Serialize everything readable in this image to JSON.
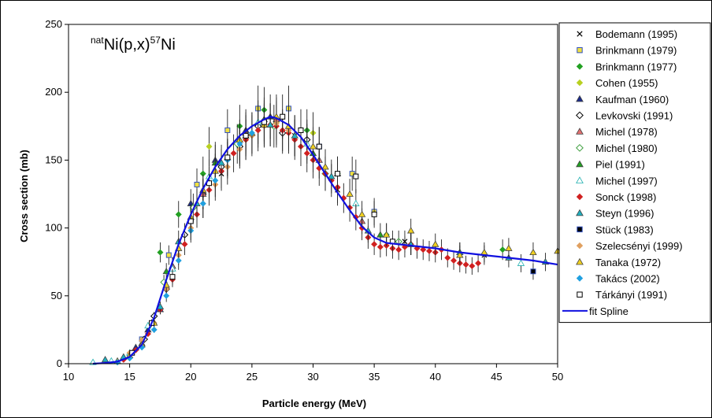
{
  "chart_data": {
    "type": "scatter",
    "title": "",
    "annotation": {
      "prefix_sup": "nat",
      "mid": "Ni(p,x)",
      "mid_sup": "57",
      "suffix": "Ni"
    },
    "xlabel": "Particle energy (MeV)",
    "ylabel": "Cross section (mb)",
    "xlim": [
      10,
      50
    ],
    "ylim": [
      0,
      250
    ],
    "x_ticks": [
      "10",
      "15",
      "20",
      "25",
      "30",
      "35",
      "40",
      "45",
      "50"
    ],
    "y_ticks": [
      "0",
      "50",
      "100",
      "150",
      "200",
      "250"
    ],
    "grid": false,
    "legend_position": "right",
    "series": [
      {
        "name": "Bodemann (1995)",
        "marker": "x",
        "color": "#000000",
        "points": [
          [
            22.5,
            140
          ],
          [
            28.5,
            168
          ],
          [
            32.0,
            128
          ],
          [
            37.5,
            90
          ],
          [
            44.0,
            80
          ]
        ]
      },
      {
        "name": "Brinkmann (1979)",
        "marker": "square",
        "color": "#f0e040",
        "points": [
          [
            16.0,
            18
          ],
          [
            18.2,
            80
          ],
          [
            20.5,
            132
          ],
          [
            23.0,
            172
          ],
          [
            25.5,
            188
          ],
          [
            28.0,
            188
          ],
          [
            30.5,
            160
          ],
          [
            33.2,
            140
          ],
          [
            35.0,
            112
          ]
        ]
      },
      {
        "name": "Brinkmann (1977)",
        "marker": "diamond",
        "color": "#22a022",
        "points": [
          [
            17.5,
            82
          ],
          [
            19.0,
            110
          ],
          [
            21.0,
            140
          ],
          [
            24.0,
            175
          ],
          [
            26.0,
            187
          ],
          [
            29.5,
            172
          ],
          [
            32.0,
            140
          ],
          [
            36.0,
            95
          ],
          [
            45.5,
            84
          ]
        ]
      },
      {
        "name": "Cohen (1955)",
        "marker": "diamond",
        "color": "#b8d020",
        "points": [
          [
            21.5,
            160
          ],
          [
            24.5,
            165
          ],
          [
            27.0,
            178
          ],
          [
            30.0,
            170
          ]
        ]
      },
      {
        "name": "Kaufman (1960)",
        "marker": "triangle",
        "color": "#1a2a8a",
        "points": [
          [
            15.5,
            12
          ],
          [
            16.5,
            25
          ],
          [
            17.5,
            40
          ],
          [
            18.5,
            72
          ],
          [
            20.0,
            118
          ],
          [
            22.0,
            150
          ],
          [
            24.5,
            172
          ],
          [
            26.5,
            182
          ]
        ]
      },
      {
        "name": "Levkovski (1991)",
        "marker": "diamond-open",
        "color": "#000000",
        "points": [
          [
            16.2,
            18
          ],
          [
            17.0,
            35
          ],
          [
            18.0,
            55
          ],
          [
            19.5,
            95
          ],
          [
            21.0,
            125
          ],
          [
            22.5,
            145
          ],
          [
            24.0,
            160
          ],
          [
            25.5,
            175
          ],
          [
            27.5,
            170
          ],
          [
            29.5,
            165
          ]
        ]
      },
      {
        "name": "Michel (1978)",
        "marker": "triangle",
        "color": "#e07070",
        "points": [
          [
            18.5,
            72
          ],
          [
            21.0,
            125
          ],
          [
            24.5,
            170
          ],
          [
            27.0,
            180
          ],
          [
            30.5,
            150
          ],
          [
            34.0,
            105
          ]
        ]
      },
      {
        "name": "Michel (1980)",
        "marker": "diamond-open",
        "color": "#40a040",
        "points": [
          [
            17.8,
            60
          ],
          [
            20.2,
            115
          ],
          [
            23.8,
            162
          ],
          [
            26.8,
            175
          ],
          [
            31.0,
            140
          ],
          [
            37.0,
            90
          ]
        ]
      },
      {
        "name": "Piel (1991)",
        "marker": "triangle",
        "color": "#22a022",
        "points": [
          [
            18.0,
            68
          ],
          [
            22.0,
            148
          ],
          [
            26.0,
            180
          ],
          [
            30.0,
            155
          ],
          [
            35.5,
            95
          ]
        ]
      },
      {
        "name": "Michel (1997)",
        "marker": "triangle-open",
        "color": "#20b0b0",
        "points": [
          [
            12.0,
            1
          ],
          [
            13.5,
            2
          ],
          [
            15.0,
            8
          ],
          [
            16.5,
            28
          ],
          [
            18.5,
            70
          ],
          [
            21.5,
            138
          ],
          [
            25.5,
            178
          ],
          [
            29.5,
            162
          ],
          [
            33.5,
            118
          ],
          [
            38.0,
            88
          ],
          [
            42.0,
            82
          ],
          [
            47.0,
            74
          ]
        ]
      },
      {
        "name": "Sonck (1998)",
        "marker": "diamond",
        "color": "#d02020",
        "points": [
          [
            14.5,
            3
          ],
          [
            15.5,
            10
          ],
          [
            16.5,
            22
          ],
          [
            17.5,
            40
          ],
          [
            18.5,
            62
          ],
          [
            19.5,
            88
          ],
          [
            20.5,
            110
          ],
          [
            21.5,
            128
          ],
          [
            22.5,
            142
          ],
          [
            23.5,
            155
          ],
          [
            24.5,
            165
          ],
          [
            25.5,
            172
          ],
          [
            26.5,
            176
          ],
          [
            27.0,
            175
          ],
          [
            27.5,
            172
          ],
          [
            28.0,
            170
          ],
          [
            28.5,
            165
          ],
          [
            29.0,
            160
          ],
          [
            29.5,
            155
          ],
          [
            30.0,
            150
          ],
          [
            30.5,
            144
          ],
          [
            31.0,
            140
          ],
          [
            31.5,
            135
          ],
          [
            32.0,
            130
          ],
          [
            32.5,
            122
          ],
          [
            33.0,
            115
          ],
          [
            33.5,
            108
          ],
          [
            34.0,
            100
          ],
          [
            34.5,
            93
          ],
          [
            35.0,
            88
          ],
          [
            35.5,
            86
          ],
          [
            36.0,
            87
          ],
          [
            36.5,
            85
          ],
          [
            37.0,
            84
          ],
          [
            37.5,
            86
          ],
          [
            38.0,
            88
          ],
          [
            38.5,
            85
          ],
          [
            39.0,
            84
          ],
          [
            39.5,
            83
          ],
          [
            40.0,
            82
          ],
          [
            40.5,
            84
          ],
          [
            41.0,
            78
          ],
          [
            41.5,
            76
          ],
          [
            42.0,
            74
          ],
          [
            42.5,
            73
          ],
          [
            43.0,
            72
          ],
          [
            43.5,
            74
          ]
        ]
      },
      {
        "name": "Steyn (1996)",
        "marker": "triangle",
        "color": "#20b0c0",
        "points": [
          [
            13.0,
            3
          ],
          [
            14.5,
            5
          ],
          [
            16.0,
            15
          ],
          [
            17.5,
            42
          ],
          [
            19.0,
            90
          ],
          [
            20.5,
            118
          ],
          [
            22.5,
            148
          ],
          [
            24.5,
            168
          ],
          [
            26.5,
            176
          ],
          [
            28.5,
            168
          ],
          [
            31.5,
            138
          ],
          [
            34.5,
            98
          ],
          [
            38.0,
            88
          ],
          [
            42.0,
            82
          ],
          [
            46.0,
            78
          ],
          [
            49.0,
            75
          ]
        ]
      },
      {
        "name": "Stück (1983)",
        "marker": "square",
        "color": "#000000",
        "points": [
          [
            48.0,
            68
          ]
        ]
      },
      {
        "name": "Szelecsényi (1999)",
        "marker": "diamond",
        "color": "#e0a060",
        "points": [
          [
            15.0,
            8
          ],
          [
            16.0,
            17
          ],
          [
            17.0,
            30
          ],
          [
            18.0,
            55
          ],
          [
            19.0,
            80
          ],
          [
            20.0,
            100
          ],
          [
            21.0,
            118
          ],
          [
            22.0,
            132
          ],
          [
            23.0,
            145
          ],
          [
            24.0,
            158
          ],
          [
            25.0,
            168
          ],
          [
            26.0,
            175
          ],
          [
            27.0,
            177
          ],
          [
            28.0,
            172
          ]
        ]
      },
      {
        "name": "Tanaka (1972)",
        "marker": "triangle",
        "color": "#f0d020",
        "points": [
          [
            14.0,
            2
          ],
          [
            15.0,
            6
          ],
          [
            16.0,
            14
          ],
          [
            17.0,
            30
          ],
          [
            18.0,
            58
          ],
          [
            19.0,
            85
          ],
          [
            20.0,
            108
          ],
          [
            21.0,
            128
          ],
          [
            22.0,
            142
          ],
          [
            23.0,
            152
          ],
          [
            24.0,
            165
          ],
          [
            25.0,
            170
          ],
          [
            26.0,
            176
          ],
          [
            27.0,
            182
          ],
          [
            28.0,
            175
          ],
          [
            30.0,
            160
          ],
          [
            31.0,
            145
          ],
          [
            32.0,
            140
          ],
          [
            33.0,
            125
          ],
          [
            34.0,
            110
          ],
          [
            36.0,
            95
          ],
          [
            38.0,
            98
          ],
          [
            40.0,
            88
          ],
          [
            42.0,
            80
          ],
          [
            44.0,
            82
          ],
          [
            46.0,
            85
          ],
          [
            48.0,
            82
          ],
          [
            50.0,
            83
          ]
        ]
      },
      {
        "name": "Takács (2002)",
        "marker": "diamond",
        "color": "#20a0e0",
        "points": [
          [
            14.0,
            1
          ],
          [
            15.0,
            4
          ],
          [
            16.0,
            12
          ],
          [
            17.0,
            25
          ],
          [
            18.0,
            50
          ],
          [
            19.0,
            76
          ],
          [
            20.0,
            98
          ],
          [
            21.0,
            118
          ],
          [
            22.0,
            135
          ],
          [
            23.0,
            150
          ],
          [
            24.0,
            162
          ],
          [
            25.0,
            170
          ]
        ]
      },
      {
        "name": "Tárkányi (1991)",
        "marker": "square-open",
        "color": "#000000",
        "points": [
          [
            15.2,
            8
          ],
          [
            16.8,
            30
          ],
          [
            18.5,
            64
          ],
          [
            20.0,
            105
          ],
          [
            21.5,
            133
          ],
          [
            23.0,
            152
          ],
          [
            24.5,
            168
          ],
          [
            26.0,
            178
          ],
          [
            27.5,
            182
          ],
          [
            29.0,
            172
          ],
          [
            30.5,
            160
          ],
          [
            32.0,
            140
          ],
          [
            33.5,
            138
          ],
          [
            35.0,
            110
          ],
          [
            36.5,
            90
          ]
        ]
      }
    ],
    "fit": {
      "name": "fit Spline",
      "color": "#1010e0",
      "points": [
        [
          12,
          0
        ],
        [
          13,
          0.5
        ],
        [
          14,
          1.5
        ],
        [
          15,
          5
        ],
        [
          16,
          14
        ],
        [
          17,
          34
        ],
        [
          18,
          62
        ],
        [
          19,
          88
        ],
        [
          20,
          110
        ],
        [
          21,
          129
        ],
        [
          22,
          145
        ],
        [
          23,
          158
        ],
        [
          24,
          168
        ],
        [
          25,
          175
        ],
        [
          26,
          180
        ],
        [
          26.5,
          182
        ],
        [
          27,
          181
        ],
        [
          28,
          176
        ],
        [
          29,
          167
        ],
        [
          30,
          154
        ],
        [
          31,
          140
        ],
        [
          32,
          126
        ],
        [
          33,
          113
        ],
        [
          34,
          101
        ],
        [
          35,
          93
        ],
        [
          36,
          89
        ],
        [
          38,
          87
        ],
        [
          40,
          85
        ],
        [
          42,
          82
        ],
        [
          44,
          80
        ],
        [
          46,
          78
        ],
        [
          48,
          76
        ],
        [
          50,
          73
        ]
      ]
    }
  }
}
